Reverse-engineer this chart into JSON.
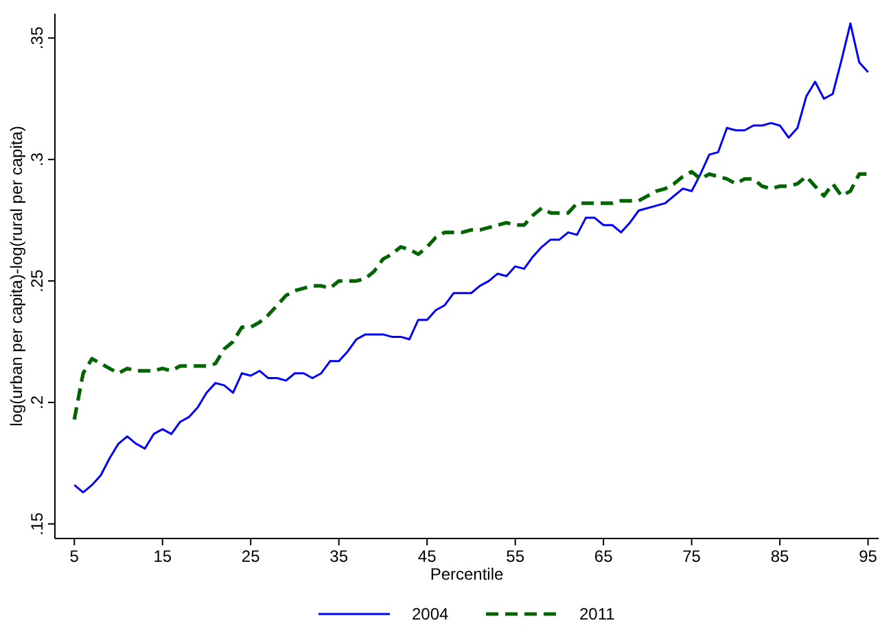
{
  "chart_data": {
    "type": "line",
    "xlabel": "Percentile",
    "ylabel": "log(urban per capita)-log(rural per capita)",
    "x": [
      5,
      6,
      7,
      8,
      9,
      10,
      11,
      12,
      13,
      14,
      15,
      16,
      17,
      18,
      19,
      20,
      21,
      22,
      23,
      24,
      25,
      26,
      27,
      28,
      29,
      30,
      31,
      32,
      33,
      34,
      35,
      36,
      37,
      38,
      39,
      40,
      41,
      42,
      43,
      44,
      45,
      46,
      47,
      48,
      49,
      50,
      51,
      52,
      53,
      54,
      55,
      56,
      57,
      58,
      59,
      60,
      61,
      62,
      63,
      64,
      65,
      66,
      67,
      68,
      69,
      70,
      71,
      72,
      73,
      74,
      75,
      76,
      77,
      78,
      79,
      80,
      81,
      82,
      83,
      84,
      85,
      86,
      87,
      88,
      89,
      90,
      91,
      92,
      93,
      94,
      95
    ],
    "series": [
      {
        "name": "2004",
        "color": "#0000ff",
        "line_style": "solid",
        "values": [
          0.166,
          0.163,
          0.166,
          0.17,
          0.177,
          0.183,
          0.186,
          0.183,
          0.181,
          0.187,
          0.189,
          0.187,
          0.192,
          0.194,
          0.198,
          0.204,
          0.208,
          0.207,
          0.204,
          0.212,
          0.211,
          0.213,
          0.21,
          0.21,
          0.209,
          0.212,
          0.212,
          0.21,
          0.212,
          0.217,
          0.217,
          0.221,
          0.226,
          0.228,
          0.228,
          0.228,
          0.227,
          0.227,
          0.226,
          0.234,
          0.234,
          0.238,
          0.24,
          0.245,
          0.245,
          0.245,
          0.248,
          0.25,
          0.253,
          0.252,
          0.256,
          0.255,
          0.26,
          0.264,
          0.267,
          0.267,
          0.27,
          0.269,
          0.276,
          0.276,
          0.273,
          0.273,
          0.27,
          0.274,
          0.279,
          0.28,
          0.281,
          0.282,
          0.285,
          0.288,
          0.287,
          0.294,
          0.302,
          0.303,
          0.313,
          0.312,
          0.312,
          0.314,
          0.314,
          0.315,
          0.314,
          0.309,
          0.313,
          0.326,
          0.332,
          0.325,
          0.327,
          0.341,
          0.356,
          0.34,
          0.336
        ]
      },
      {
        "name": "2011",
        "color": "#006400",
        "line_style": "dashed",
        "values": [
          0.193,
          0.212,
          0.218,
          0.216,
          0.214,
          0.212,
          0.214,
          0.213,
          0.213,
          0.213,
          0.214,
          0.213,
          0.215,
          0.215,
          0.215,
          0.215,
          0.216,
          0.222,
          0.225,
          0.231,
          0.231,
          0.233,
          0.236,
          0.24,
          0.244,
          0.246,
          0.247,
          0.248,
          0.248,
          0.247,
          0.25,
          0.25,
          0.25,
          0.251,
          0.254,
          0.259,
          0.261,
          0.264,
          0.263,
          0.261,
          0.264,
          0.268,
          0.27,
          0.27,
          0.27,
          0.271,
          0.271,
          0.272,
          0.273,
          0.274,
          0.273,
          0.273,
          0.277,
          0.28,
          0.278,
          0.278,
          0.278,
          0.282,
          0.282,
          0.282,
          0.282,
          0.282,
          0.283,
          0.283,
          0.283,
          0.285,
          0.287,
          0.288,
          0.29,
          0.293,
          0.295,
          0.292,
          0.294,
          0.293,
          0.292,
          0.29,
          0.292,
          0.292,
          0.289,
          0.288,
          0.289,
          0.289,
          0.29,
          0.293,
          0.289,
          0.285,
          0.29,
          0.285,
          0.287,
          0.294,
          0.294
        ]
      }
    ],
    "xlim": [
      2.8,
      96.2
    ],
    "ylim": [
      0.144,
      0.36
    ],
    "xticks": [
      5,
      15,
      25,
      35,
      45,
      55,
      65,
      75,
      85,
      95
    ],
    "yticks": [
      {
        "value": 0.15,
        "label": ".15"
      },
      {
        "value": 0.2,
        "label": ".2"
      },
      {
        "value": 0.25,
        "label": ".25"
      },
      {
        "value": 0.3,
        "label": ".3"
      },
      {
        "value": 0.35,
        "label": ".35"
      }
    ],
    "grid": false,
    "legend": "bottom",
    "marker": "none"
  }
}
